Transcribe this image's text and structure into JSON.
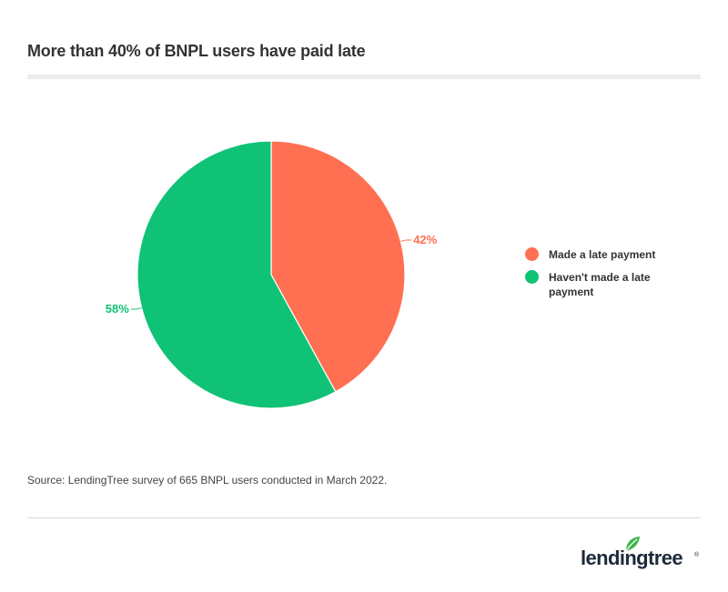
{
  "title": "More than 40% of BNPL users have paid late",
  "source": "Source: LendingTree survey of 665 BNPL users conducted in March 2022.",
  "logo": {
    "text": "lendingtree",
    "registered": "®",
    "leaf_color": "#3ab54a"
  },
  "chart_data": {
    "type": "pie",
    "title": "More than 40% of BNPL users have paid late",
    "legend_position": "right",
    "slices": [
      {
        "name": "Made a late payment",
        "value": 42,
        "label": "42%",
        "color": "#ff7052"
      },
      {
        "name": "Haven't made a late payment",
        "value": 58,
        "label": "58%",
        "color": "#0fc276"
      }
    ]
  }
}
